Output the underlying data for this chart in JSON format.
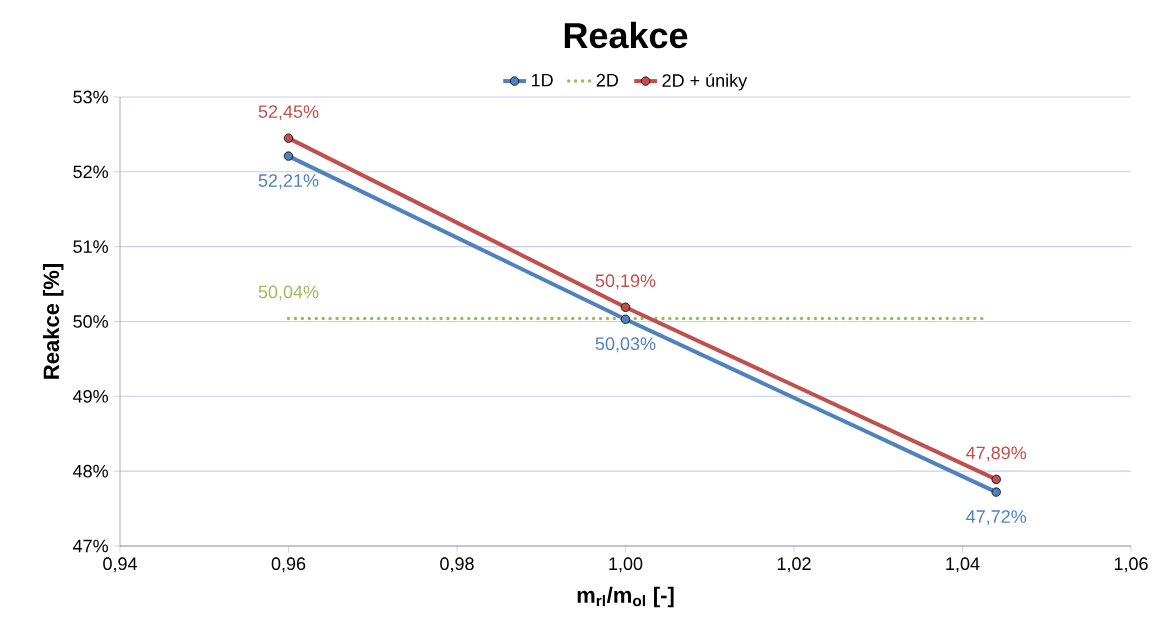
{
  "chart_data": {
    "type": "line",
    "title": "Reakce",
    "xlabel": "m$_{rl}$/m$_{ol}$ [-]",
    "ylabel": "Reakce [%]",
    "xlim": [
      0.94,
      1.06
    ],
    "ylim": [
      47,
      53
    ],
    "xticks": [
      {
        "value": 0.94,
        "label": "0,94"
      },
      {
        "value": 0.96,
        "label": "0,96"
      },
      {
        "value": 0.98,
        "label": "0,98"
      },
      {
        "value": 1.0,
        "label": "1,00"
      },
      {
        "value": 1.02,
        "label": "1,02"
      },
      {
        "value": 1.04,
        "label": "1,04"
      },
      {
        "value": 1.06,
        "label": "1,06"
      }
    ],
    "yticks": [
      {
        "value": 47,
        "label": "47%"
      },
      {
        "value": 48,
        "label": "48%"
      },
      {
        "value": 49,
        "label": "49%"
      },
      {
        "value": 50,
        "label": "50%"
      },
      {
        "value": 51,
        "label": "51%"
      },
      {
        "value": 52,
        "label": "52%"
      },
      {
        "value": 53,
        "label": "53%"
      }
    ],
    "grid": "y",
    "legend": "top",
    "series": [
      {
        "name": "1D",
        "color": "#4f81bd",
        "marker": "circle",
        "line_style": "solid",
        "x": [
          0.96,
          1.0,
          1.044
        ],
        "values": [
          52.21,
          50.03,
          47.72
        ],
        "value_labels": [
          "52,21%",
          "50,03%",
          "47,72%"
        ]
      },
      {
        "name": "2D",
        "color": "#9bbb59",
        "marker": "none",
        "line_style": "dotted",
        "x": [
          0.96,
          1.043
        ],
        "values": [
          50.04,
          50.04
        ],
        "value_labels": [
          "50,04%",
          null
        ]
      },
      {
        "name": "2D + úniky",
        "color": "#c0504d",
        "marker": "circle",
        "line_style": "solid",
        "x": [
          0.96,
          1.0,
          1.044
        ],
        "values": [
          52.45,
          50.19,
          47.89
        ],
        "value_labels": [
          "52,45%",
          "50,19%",
          "47,89%"
        ]
      }
    ]
  }
}
